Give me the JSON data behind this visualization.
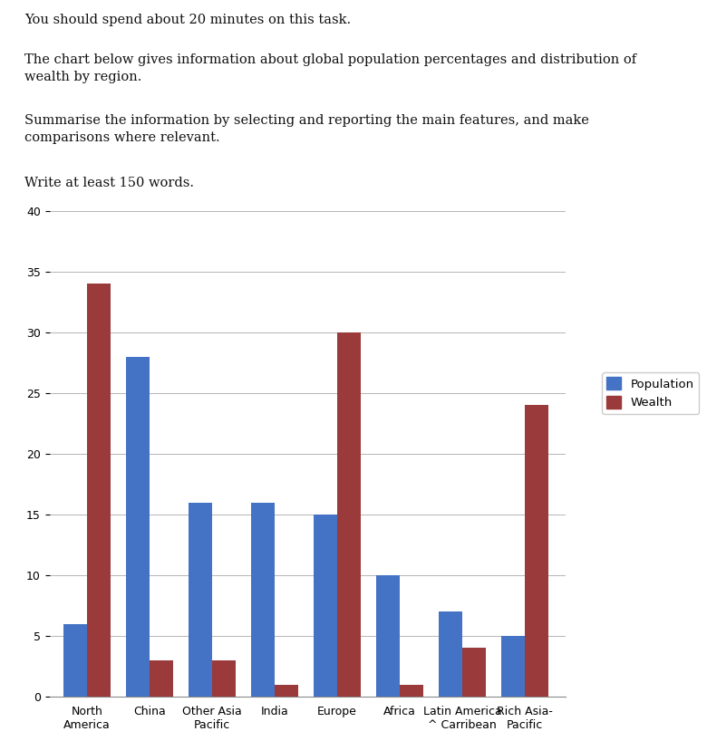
{
  "categories": [
    "North\nAmerica",
    "China",
    "Other Asia\nPacific",
    "India",
    "Europe",
    "Africa",
    "Latin America\n^ Carribean",
    "Rich Asia-\nPacific"
  ],
  "population": [
    6,
    28,
    16,
    16,
    15,
    10,
    7,
    5
  ],
  "wealth": [
    34,
    3,
    3,
    1,
    30,
    1,
    4,
    24
  ],
  "bar_color_population": "#4472C4",
  "bar_color_wealth": "#9B3A3A",
  "legend_labels": [
    "Population",
    "Wealth"
  ],
  "ylim": [
    0,
    40
  ],
  "yticks": [
    0,
    5,
    10,
    15,
    20,
    25,
    30,
    35,
    40
  ],
  "bar_width": 0.38,
  "text_lines": [
    "You should spend about 20 minutes on this task.",
    "The chart below gives information about global population percentages and distribution of\nwealth by region.",
    "Summarise the information by selecting and reporting the main features, and make\ncomparisons where relevant.",
    "Write at least 150 words."
  ],
  "background_color": "#FFFFFF",
  "chart_bg_color": "#FFFFFF",
  "grid_color": "#AAAAAA",
  "text_font_size": 10.5,
  "tick_font_size": 9,
  "legend_font_size": 9.5
}
